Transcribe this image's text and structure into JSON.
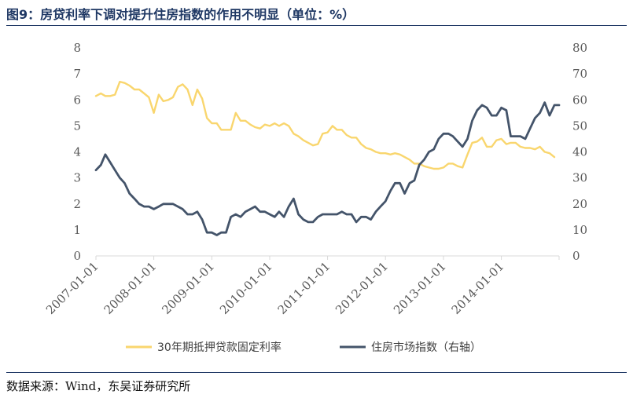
{
  "figure": {
    "title": "图9：房贷利率下调对提升住房指数的作用不明显（单位：%）",
    "source": "数据来源：Wind，东吴证券研究所"
  },
  "chart_data": {
    "type": "line",
    "title": "图9：房贷利率下调对提升住房指数的作用不明显（单位：%）",
    "x_ticks": [
      "2007-01-01",
      "2008-01-01",
      "2009-01-01",
      "2010-01-01",
      "2011-01-01",
      "2012-01-01",
      "2013-01-01",
      "2014-01-01"
    ],
    "x_range": [
      "2007-01-01",
      "2014-12-31"
    ],
    "y_left": {
      "ticks": [
        "0",
        "1",
        "2",
        "3",
        "4",
        "5",
        "6",
        "7",
        "8"
      ],
      "range": [
        0,
        8
      ]
    },
    "y_right": {
      "ticks": [
        "0",
        "10",
        "20",
        "30",
        "40",
        "50",
        "60",
        "70",
        "80"
      ],
      "range": [
        0,
        80
      ]
    },
    "grid": false,
    "legend_position": "bottom",
    "series": [
      {
        "name": "30年期抵押贷款固定利率",
        "axis": "left",
        "color": "#f9d66e",
        "points": [
          [
            "2007-01-01",
            6.15
          ],
          [
            "2007-02-01",
            6.25
          ],
          [
            "2007-03-01",
            6.15
          ],
          [
            "2007-04-01",
            6.15
          ],
          [
            "2007-05-01",
            6.2
          ],
          [
            "2007-06-01",
            6.7
          ],
          [
            "2007-07-01",
            6.65
          ],
          [
            "2007-08-01",
            6.55
          ],
          [
            "2007-09-01",
            6.4
          ],
          [
            "2007-10-01",
            6.4
          ],
          [
            "2007-11-01",
            6.25
          ],
          [
            "2007-12-01",
            6.1
          ],
          [
            "2008-01-01",
            5.5
          ],
          [
            "2008-02-01",
            6.2
          ],
          [
            "2008-03-01",
            5.95
          ],
          [
            "2008-04-01",
            6.0
          ],
          [
            "2008-05-01",
            6.1
          ],
          [
            "2008-06-01",
            6.5
          ],
          [
            "2008-07-01",
            6.6
          ],
          [
            "2008-08-01",
            6.4
          ],
          [
            "2008-09-01",
            5.8
          ],
          [
            "2008-10-01",
            6.4
          ],
          [
            "2008-11-01",
            6.05
          ],
          [
            "2008-12-01",
            5.3
          ],
          [
            "2009-01-01",
            5.1
          ],
          [
            "2009-02-01",
            5.1
          ],
          [
            "2009-03-01",
            4.85
          ],
          [
            "2009-04-01",
            4.85
          ],
          [
            "2009-05-01",
            4.85
          ],
          [
            "2009-06-01",
            5.5
          ],
          [
            "2009-07-01",
            5.2
          ],
          [
            "2009-08-01",
            5.2
          ],
          [
            "2009-09-01",
            5.05
          ],
          [
            "2009-10-01",
            4.95
          ],
          [
            "2009-11-01",
            4.9
          ],
          [
            "2009-12-01",
            5.05
          ],
          [
            "2010-01-01",
            5.0
          ],
          [
            "2010-02-01",
            5.1
          ],
          [
            "2010-03-01",
            5.0
          ],
          [
            "2010-04-01",
            5.1
          ],
          [
            "2010-05-01",
            5.0
          ],
          [
            "2010-06-01",
            4.7
          ],
          [
            "2010-07-01",
            4.6
          ],
          [
            "2010-08-01",
            4.45
          ],
          [
            "2010-09-01",
            4.35
          ],
          [
            "2010-10-01",
            4.25
          ],
          [
            "2010-11-01",
            4.3
          ],
          [
            "2010-12-01",
            4.7
          ],
          [
            "2011-01-01",
            4.75
          ],
          [
            "2011-02-01",
            5.0
          ],
          [
            "2011-03-01",
            4.85
          ],
          [
            "2011-04-01",
            4.85
          ],
          [
            "2011-05-01",
            4.65
          ],
          [
            "2011-06-01",
            4.55
          ],
          [
            "2011-07-01",
            4.55
          ],
          [
            "2011-08-01",
            4.3
          ],
          [
            "2011-09-01",
            4.15
          ],
          [
            "2011-10-01",
            4.1
          ],
          [
            "2011-11-01",
            4.0
          ],
          [
            "2011-12-01",
            3.95
          ],
          [
            "2012-01-01",
            3.95
          ],
          [
            "2012-02-01",
            3.9
          ],
          [
            "2012-03-01",
            3.95
          ],
          [
            "2012-04-01",
            3.9
          ],
          [
            "2012-05-01",
            3.8
          ],
          [
            "2012-06-01",
            3.7
          ],
          [
            "2012-07-01",
            3.55
          ],
          [
            "2012-08-01",
            3.55
          ],
          [
            "2012-09-01",
            3.45
          ],
          [
            "2012-10-01",
            3.4
          ],
          [
            "2012-11-01",
            3.35
          ],
          [
            "2012-12-01",
            3.35
          ],
          [
            "2013-01-01",
            3.4
          ],
          [
            "2013-02-01",
            3.55
          ],
          [
            "2013-03-01",
            3.55
          ],
          [
            "2013-04-01",
            3.45
          ],
          [
            "2013-05-01",
            3.4
          ],
          [
            "2013-06-01",
            3.9
          ],
          [
            "2013-07-01",
            4.35
          ],
          [
            "2013-08-01",
            4.4
          ],
          [
            "2013-09-01",
            4.55
          ],
          [
            "2013-10-01",
            4.2
          ],
          [
            "2013-11-01",
            4.2
          ],
          [
            "2013-12-01",
            4.45
          ],
          [
            "2014-01-01",
            4.5
          ],
          [
            "2014-02-01",
            4.3
          ],
          [
            "2014-03-01",
            4.35
          ],
          [
            "2014-04-01",
            4.35
          ],
          [
            "2014-05-01",
            4.2
          ],
          [
            "2014-06-01",
            4.15
          ],
          [
            "2014-07-01",
            4.15
          ],
          [
            "2014-08-01",
            4.1
          ],
          [
            "2014-09-01",
            4.2
          ],
          [
            "2014-10-01",
            4.0
          ],
          [
            "2014-11-01",
            3.95
          ],
          [
            "2014-12-01",
            3.8
          ]
        ]
      },
      {
        "name": "住房市场指数（右轴）",
        "axis": "right",
        "color": "#44546a",
        "points": [
          [
            "2007-01-01",
            33
          ],
          [
            "2007-02-01",
            35
          ],
          [
            "2007-03-01",
            39
          ],
          [
            "2007-04-01",
            36
          ],
          [
            "2007-05-01",
            33
          ],
          [
            "2007-06-01",
            30
          ],
          [
            "2007-07-01",
            28
          ],
          [
            "2007-08-01",
            24
          ],
          [
            "2007-09-01",
            22
          ],
          [
            "2007-10-01",
            20
          ],
          [
            "2007-11-01",
            19
          ],
          [
            "2007-12-01",
            19
          ],
          [
            "2008-01-01",
            18
          ],
          [
            "2008-02-01",
            19
          ],
          [
            "2008-03-01",
            20
          ],
          [
            "2008-04-01",
            20
          ],
          [
            "2008-05-01",
            20
          ],
          [
            "2008-06-01",
            19
          ],
          [
            "2008-07-01",
            18
          ],
          [
            "2008-08-01",
            16
          ],
          [
            "2008-09-01",
            16
          ],
          [
            "2008-10-01",
            17
          ],
          [
            "2008-11-01",
            14
          ],
          [
            "2008-12-01",
            9
          ],
          [
            "2009-01-01",
            9
          ],
          [
            "2009-02-01",
            8
          ],
          [
            "2009-03-01",
            9
          ],
          [
            "2009-04-01",
            9
          ],
          [
            "2009-05-01",
            15
          ],
          [
            "2009-06-01",
            16
          ],
          [
            "2009-07-01",
            15
          ],
          [
            "2009-08-01",
            17
          ],
          [
            "2009-09-01",
            18
          ],
          [
            "2009-10-01",
            19
          ],
          [
            "2009-11-01",
            17
          ],
          [
            "2009-12-01",
            17
          ],
          [
            "2010-01-01",
            16
          ],
          [
            "2010-02-01",
            15
          ],
          [
            "2010-03-01",
            17
          ],
          [
            "2010-04-01",
            15
          ],
          [
            "2010-05-01",
            19
          ],
          [
            "2010-06-01",
            22
          ],
          [
            "2010-07-01",
            16
          ],
          [
            "2010-08-01",
            14
          ],
          [
            "2010-09-01",
            13
          ],
          [
            "2010-10-01",
            13
          ],
          [
            "2010-11-01",
            15
          ],
          [
            "2010-12-01",
            16
          ],
          [
            "2011-01-01",
            16
          ],
          [
            "2011-02-01",
            16
          ],
          [
            "2011-03-01",
            16
          ],
          [
            "2011-04-01",
            17
          ],
          [
            "2011-05-01",
            16
          ],
          [
            "2011-06-01",
            16
          ],
          [
            "2011-07-01",
            13
          ],
          [
            "2011-08-01",
            15
          ],
          [
            "2011-09-01",
            15
          ],
          [
            "2011-10-01",
            14
          ],
          [
            "2011-11-01",
            17
          ],
          [
            "2011-12-01",
            19
          ],
          [
            "2012-01-01",
            21
          ],
          [
            "2012-02-01",
            25
          ],
          [
            "2012-03-01",
            28
          ],
          [
            "2012-04-01",
            28
          ],
          [
            "2012-05-01",
            24
          ],
          [
            "2012-06-01",
            28
          ],
          [
            "2012-07-01",
            29
          ],
          [
            "2012-08-01",
            35
          ],
          [
            "2012-09-01",
            37
          ],
          [
            "2012-10-01",
            40
          ],
          [
            "2012-11-01",
            41
          ],
          [
            "2012-12-01",
            45
          ],
          [
            "2013-01-01",
            47
          ],
          [
            "2013-02-01",
            47
          ],
          [
            "2013-03-01",
            46
          ],
          [
            "2013-04-01",
            44
          ],
          [
            "2013-05-01",
            42
          ],
          [
            "2013-06-01",
            45
          ],
          [
            "2013-07-01",
            52
          ],
          [
            "2013-08-01",
            56
          ],
          [
            "2013-09-01",
            58
          ],
          [
            "2013-10-01",
            57
          ],
          [
            "2013-11-01",
            54
          ],
          [
            "2013-12-01",
            54
          ],
          [
            "2014-01-01",
            57
          ],
          [
            "2014-02-01",
            56
          ],
          [
            "2014-03-01",
            46
          ],
          [
            "2014-04-01",
            46
          ],
          [
            "2014-05-01",
            46
          ],
          [
            "2014-06-01",
            45
          ],
          [
            "2014-07-01",
            49
          ],
          [
            "2014-08-01",
            53
          ],
          [
            "2014-09-01",
            55
          ],
          [
            "2014-10-01",
            59
          ],
          [
            "2014-11-01",
            54
          ],
          [
            "2014-12-01",
            58
          ],
          [
            "2014-12-31",
            58
          ]
        ]
      }
    ]
  }
}
